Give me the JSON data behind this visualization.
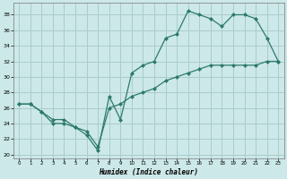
{
  "xlabel": "Humidex (Indice chaleur)",
  "background_color": "#cce8e8",
  "grid_color": "#aacccc",
  "line_color": "#2d7a6a",
  "xlim": [
    -0.5,
    23.5
  ],
  "ylim": [
    19.5,
    39.5
  ],
  "yticks": [
    20,
    22,
    24,
    26,
    28,
    30,
    32,
    34,
    36,
    38
  ],
  "xticks": [
    0,
    1,
    2,
    3,
    4,
    5,
    6,
    7,
    8,
    9,
    10,
    11,
    12,
    13,
    14,
    15,
    16,
    17,
    18,
    19,
    20,
    21,
    22,
    23
  ],
  "line1_x": [
    0,
    1,
    2,
    3,
    4,
    5,
    6,
    7,
    8,
    9,
    10,
    11,
    12,
    13,
    14,
    15,
    16,
    17,
    18,
    19,
    20,
    21,
    22,
    23
  ],
  "line1_y": [
    26.5,
    26.5,
    25.5,
    24.0,
    24.0,
    23.5,
    22.5,
    20.5,
    27.5,
    24.5,
    30.5,
    31.5,
    32.0,
    35.0,
    35.5,
    38.5,
    38.0,
    37.5,
    36.5,
    38.0,
    38.0,
    37.5,
    35.0,
    32.0
  ],
  "line2_x": [
    0,
    1,
    2,
    3,
    4,
    5,
    6,
    7,
    8,
    9,
    10,
    11,
    12,
    13,
    14,
    15,
    16,
    17,
    18,
    19,
    20,
    21,
    22,
    23
  ],
  "line2_y": [
    26.5,
    26.5,
    25.5,
    24.5,
    24.5,
    23.5,
    23.0,
    21.0,
    26.0,
    26.5,
    27.5,
    28.0,
    28.5,
    29.5,
    30.0,
    30.5,
    31.0,
    31.5,
    31.5,
    31.5,
    31.5,
    31.5,
    32.0,
    32.0
  ]
}
